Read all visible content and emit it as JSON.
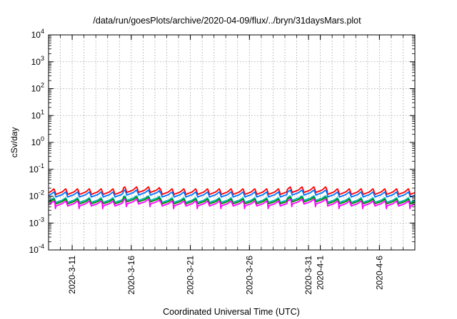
{
  "chart_data": {
    "type": "line",
    "title": "/data/run/goesPlots/archive/2020-04-09/flux/../bryn/31daysMars.plot",
    "xlabel": "Coordinated Universal Time (UTC)",
    "ylabel": "cSv/day",
    "x_range": [
      "2020-03-09",
      "2020-04-09"
    ],
    "y_range": [
      0.0001,
      10000
    ],
    "y_scale": "log",
    "grid": true,
    "legend": "none",
    "y_ticks": [
      {
        "value": 0.0001,
        "base": "10",
        "exp": "-4"
      },
      {
        "value": 0.001,
        "base": "10",
        "exp": "-3"
      },
      {
        "value": 0.01,
        "base": "10",
        "exp": "-2"
      },
      {
        "value": 0.1,
        "base": "10",
        "exp": "-1"
      },
      {
        "value": 1,
        "base": "10",
        "exp": "0"
      },
      {
        "value": 10,
        "base": "10",
        "exp": "1"
      },
      {
        "value": 100,
        "base": "10",
        "exp": "2"
      },
      {
        "value": 1000,
        "base": "10",
        "exp": "3"
      },
      {
        "value": 10000,
        "base": "10",
        "exp": "4"
      }
    ],
    "x_ticks": [
      {
        "date": "2020-03-11",
        "label": "2020-3-11"
      },
      {
        "date": "2020-03-16",
        "label": "2020-3-16"
      },
      {
        "date": "2020-03-21",
        "label": "2020-3-21"
      },
      {
        "date": "2020-03-26",
        "label": "2020-3-26"
      },
      {
        "date": "2020-03-31",
        "label": "2020-3-31"
      },
      {
        "date": "2020-04-01",
        "label": "2020-4-1"
      },
      {
        "date": "2020-04-06",
        "label": "2020-4-6"
      }
    ],
    "series": [
      {
        "color": "#ff0000",
        "base": 0.0135,
        "peak": 0.019
      },
      {
        "color": "#0072ff",
        "base": 0.0108,
        "peak": 0.0145
      },
      {
        "color": "#00b8b8",
        "base": 0.0068,
        "peak": 0.0088
      },
      {
        "color": "#008800",
        "base": 0.006,
        "peak": 0.0078
      },
      {
        "color": "#ff00ff",
        "base": 0.005,
        "peak": 0.0066
      }
    ]
  }
}
